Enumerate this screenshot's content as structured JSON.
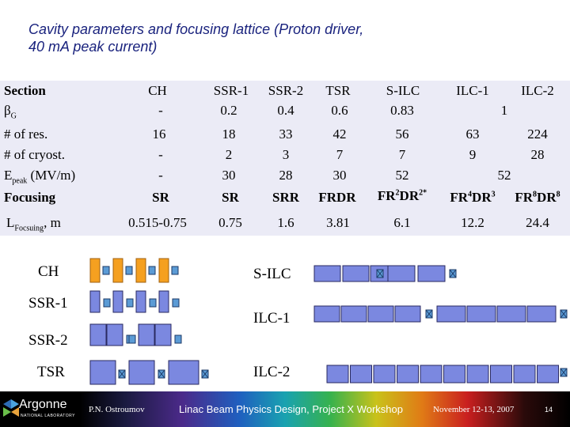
{
  "title": {
    "line1": "Cavity parameters and focusing lattice (Proton driver,",
    "line2": "40 mA peak current)"
  },
  "table": {
    "header": {
      "label": "Section",
      "cols": [
        "CH",
        "SSR-1",
        "SSR-2",
        "TSR",
        "S-ILC",
        "ILC-1",
        "ILC-2"
      ]
    },
    "beta": {
      "label_main": "β",
      "label_sub": "G",
      "values": [
        "-",
        "0.2",
        "0.4",
        "0.6",
        "0.83"
      ],
      "merged": "1"
    },
    "res": {
      "label": "# of res.",
      "values": [
        "16",
        "18",
        "33",
        "42",
        "56",
        "63",
        "224"
      ]
    },
    "cryost": {
      "label": "# of cryost.",
      "values": [
        "-",
        "2",
        "3",
        "7",
        "7",
        "9",
        "28"
      ]
    },
    "epeak": {
      "label_main": "E",
      "label_sub": "peak",
      "label_rest": " (MV/m)",
      "values": [
        "-",
        "30",
        "28",
        "30",
        "52"
      ],
      "merged": "52"
    },
    "focusing": {
      "label": "Focusing",
      "values": [
        "SR",
        "SR",
        "SRR",
        "FRDR"
      ],
      "s_ilc": {
        "a": "FR",
        "b": "2",
        "c": "DR",
        "d": "2",
        "e": "*"
      },
      "ilc1": {
        "a": "FR",
        "b": "4",
        "c": "DR",
        "d": "3"
      },
      "ilc2": {
        "a": "FR",
        "b": "8",
        "c": "DR",
        "d": "8"
      }
    },
    "lfocus": {
      "label_main": "L",
      "label_sub": "Focsuing",
      "label_rest": ", m",
      "values": [
        "0.515-0.75",
        "0.75",
        "1.6",
        "3.81",
        "6.1",
        "12.2",
        "24.4"
      ]
    }
  },
  "lattice": {
    "labels": [
      "CH",
      "SSR-1",
      "SSR-2",
      "TSR",
      "S-ILC",
      "ILC-1",
      "ILC-2"
    ],
    "colors": {
      "ch_cavity": "#f5a020",
      "cavity": "#7b88e0",
      "focus": "#5b9bd5",
      "cav_border": "#2a2a60"
    }
  },
  "footer": {
    "logo": "Argonne",
    "logo_sub": "NATIONAL LABORATORY",
    "author": "P.N. Ostroumov",
    "center": "Linac Beam Physics Design, Project X Workshop",
    "date": "November 12-13, 2007",
    "page": "14"
  }
}
